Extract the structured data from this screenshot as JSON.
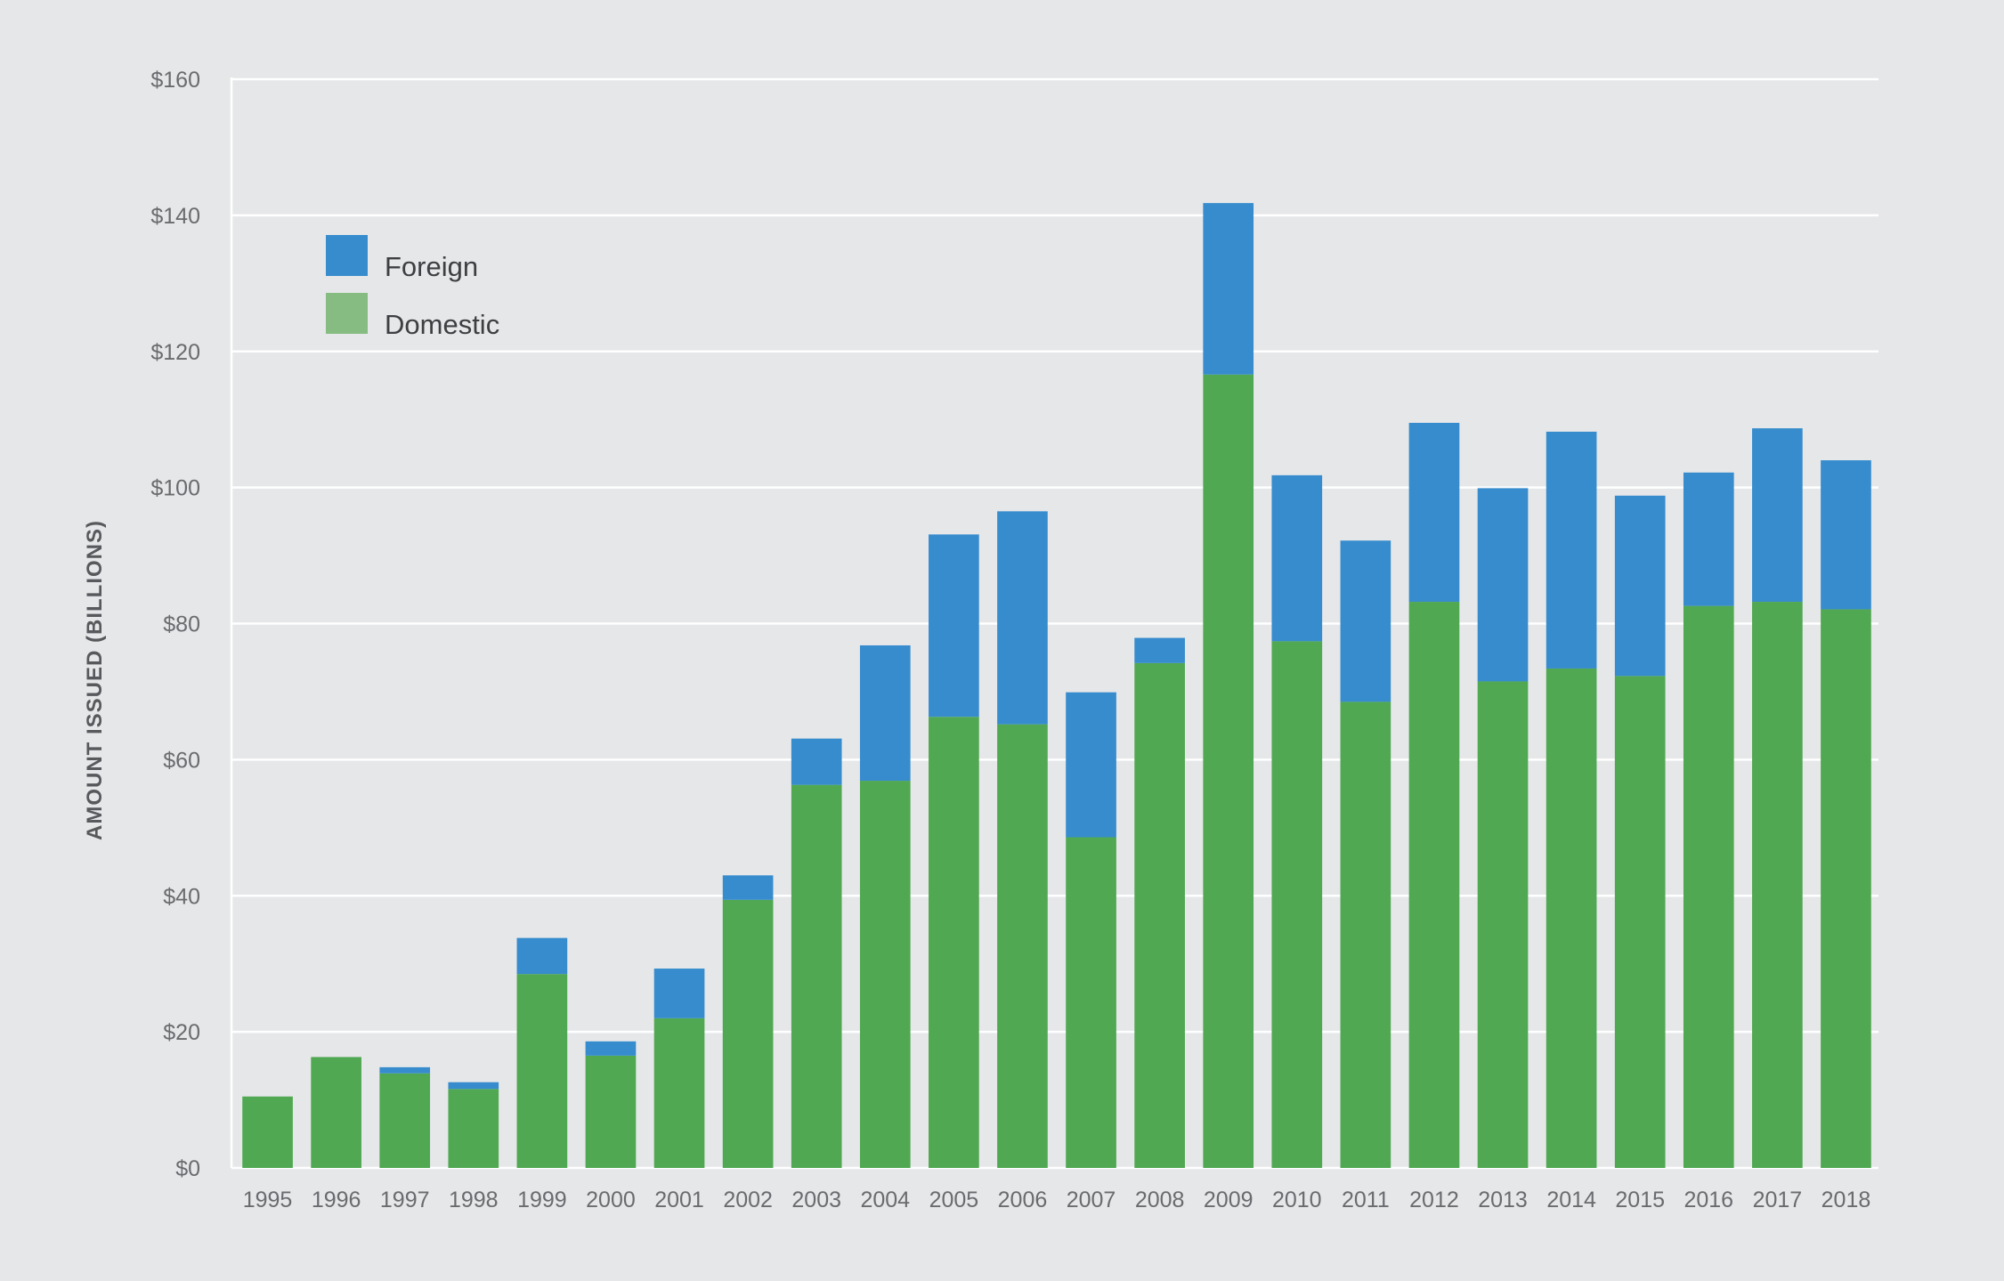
{
  "chart_data": {
    "type": "bar",
    "stacked": true,
    "title": "",
    "xlabel": "",
    "ylabel": "AMOUNT ISSUED (BILLIONS)",
    "ylim": [
      0,
      160
    ],
    "yticks": [
      0,
      20,
      40,
      60,
      80,
      100,
      120,
      140,
      160
    ],
    "ytick_labels": [
      "$0",
      "$20",
      "$40",
      "$60",
      "$80",
      "$100",
      "$120",
      "$140",
      "$160"
    ],
    "grid": true,
    "legend_position": "top-left",
    "categories": [
      "1995",
      "1996",
      "1997",
      "1998",
      "1999",
      "2000",
      "2001",
      "2002",
      "2003",
      "2004",
      "2005",
      "2006",
      "2007",
      "2008",
      "2009",
      "2010",
      "2011",
      "2012",
      "2013",
      "2014",
      "2015",
      "2016",
      "2017",
      "2018"
    ],
    "series": [
      {
        "name": "Domestic",
        "color": "#50a852",
        "legend_color": "#86bc82",
        "values": [
          10.5,
          16.3,
          13.9,
          11.6,
          28.5,
          16.5,
          22.0,
          39.4,
          56.3,
          56.9,
          66.3,
          65.2,
          48.6,
          74.2,
          116.6,
          77.4,
          68.5,
          83.2,
          71.5,
          73.4,
          72.3,
          82.6,
          83.2,
          82.1
        ]
      },
      {
        "name": "Foreign",
        "color": "#368ccd",
        "legend_color": "#368ccd",
        "values": [
          0,
          0,
          0.9,
          1.0,
          5.3,
          2.1,
          7.3,
          3.6,
          6.8,
          19.9,
          26.8,
          31.3,
          21.3,
          3.7,
          25.2,
          24.4,
          23.7,
          26.3,
          28.4,
          34.8,
          26.5,
          19.6,
          25.5,
          21.9
        ]
      }
    ],
    "legend_order": [
      "Foreign",
      "Domestic"
    ]
  }
}
